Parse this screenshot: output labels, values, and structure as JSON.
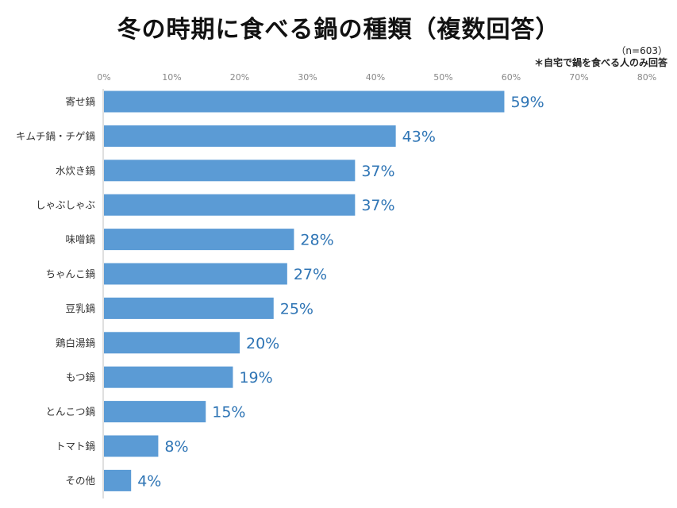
{
  "chart_data": {
    "type": "bar",
    "orientation": "horizontal",
    "title": "冬の時期に食べる鍋の種類（複数回答）",
    "sample_note": "（n=603）",
    "footnote": "＊自宅で鍋を食べる人のみ回答",
    "categories": [
      "寄せ鍋",
      "キムチ鍋・チゲ鍋",
      "水炊き鍋",
      "しゃぶしゃぶ",
      "味噌鍋",
      "ちゃんこ鍋",
      "豆乳鍋",
      "鶏白湯鍋",
      "もつ鍋",
      "とんこつ鍋",
      "トマト鍋",
      "その他"
    ],
    "values": [
      59,
      43,
      37,
      37,
      28,
      27,
      25,
      20,
      19,
      15,
      8,
      4
    ],
    "data_labels": [
      "59%",
      "43%",
      "37%",
      "37%",
      "28%",
      "27%",
      "25%",
      "20%",
      "19%",
      "15%",
      "8%",
      "4%"
    ],
    "x_ticks": [
      "0%",
      "10%",
      "20%",
      "30%",
      "40%",
      "50%",
      "60%",
      "70%",
      "80%"
    ],
    "xlim": [
      0,
      80
    ],
    "grid": false,
    "colors": {
      "bar": "#5b9bd5",
      "data_label": "#2f75b5"
    }
  }
}
